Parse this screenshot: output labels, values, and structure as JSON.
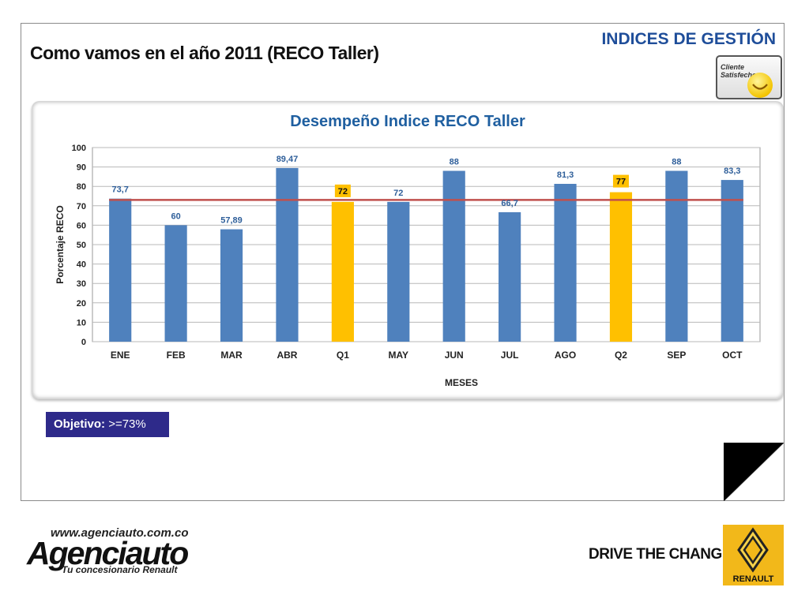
{
  "slide": {
    "title": "Como vamos en el año 2011 (RECO Taller)",
    "section_title": "INDICES DE GESTIÓN",
    "badge_text": "Cliente Satisfecho",
    "goal_label": "Objetivo:",
    "goal_value": ">=73%"
  },
  "footer": {
    "url": "www.agenciauto.com.co",
    "brand": "Agenciauto",
    "subtitle": "Tu concesionario Renault",
    "slogan": "DRIVE THE CHANGE",
    "logo_text": "RENAULT"
  },
  "colors": {
    "bar_month": "#4f81bd",
    "bar_quarter": "#ffc000",
    "target_line": "#c0504d",
    "title": "#1f5fa0"
  },
  "chart_data": {
    "type": "bar",
    "title": "Desempeño Indice RECO Taller",
    "xlabel": "MESES",
    "ylabel": "Porcentaje RECO",
    "ylim": [
      0,
      100
    ],
    "yticks": [
      0,
      10,
      20,
      30,
      40,
      50,
      60,
      70,
      80,
      90,
      100
    ],
    "grid": true,
    "categories": [
      "ENE",
      "FEB",
      "MAR",
      "ABR",
      "Q1",
      "MAY",
      "JUN",
      "JUL",
      "AGO",
      "Q2",
      "SEP",
      "OCT"
    ],
    "values": [
      73.7,
      60,
      57.89,
      89.47,
      72,
      72,
      88,
      66.7,
      81.3,
      77,
      88,
      83.3
    ],
    "labels": [
      "73,7",
      "60",
      "57,89",
      "89,47",
      "72",
      "72",
      "88",
      "66,7",
      "81,3",
      "77",
      "88",
      "83,3"
    ],
    "highlight": [
      "Q1",
      "Q2"
    ],
    "target": 73
  }
}
